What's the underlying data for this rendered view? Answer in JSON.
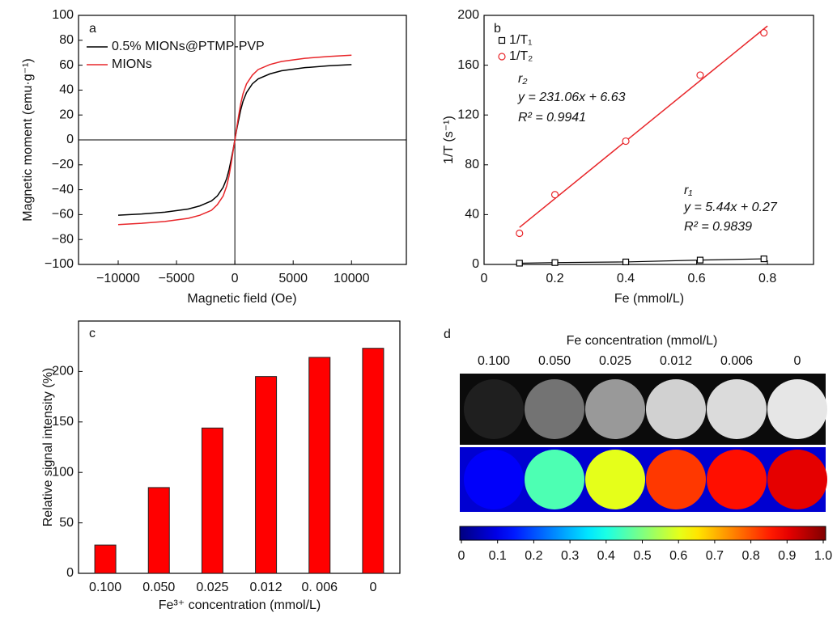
{
  "chart_data": [
    {
      "type": "line",
      "panel_label": "a",
      "x_label": "Magnetic field (Oe)",
      "y_label": "Magnetic moment (emu·g⁻¹)",
      "xlim": [
        -13400,
        14700
      ],
      "ylim": [
        -100,
        100
      ],
      "xticks": [
        {
          "value": -10000,
          "label": "−10000"
        },
        {
          "value": -5000,
          "label": "−5000"
        },
        0,
        5000,
        10000
      ],
      "yticks": [
        {
          "value": -100,
          "label": "−100"
        },
        {
          "value": -80,
          "label": "−80"
        },
        {
          "value": -60,
          "label": "−60"
        },
        {
          "value": -40,
          "label": "−40"
        },
        {
          "value": -20,
          "label": "−20"
        },
        0,
        20,
        40,
        60,
        80,
        100
      ],
      "zero_lines": true,
      "legend": "upper left",
      "x": [
        -10000,
        -8000,
        -6000,
        -4000,
        -3000,
        -2000,
        -1500,
        -1000,
        -700,
        -500,
        -300,
        -150,
        0,
        150,
        300,
        500,
        700,
        1000,
        1500,
        2000,
        3000,
        4000,
        6000,
        8000,
        10000
      ],
      "series": [
        {
          "name": "0.5% MIONs@PTMP-PVP",
          "color": "#000000",
          "values": [
            -60.5,
            -59.5,
            -58,
            -55.5,
            -53,
            -49,
            -45,
            -38,
            -31,
            -24,
            -15,
            -8,
            0,
            8,
            15,
            24,
            31,
            38,
            45,
            49,
            53,
            55.5,
            58,
            59.5,
            60.5
          ]
        },
        {
          "name": "MIONs",
          "color": "#e8262a",
          "values": [
            -68,
            -67,
            -65.5,
            -63,
            -60.5,
            -56.5,
            -52,
            -45,
            -37,
            -29,
            -18,
            -9,
            0,
            9,
            18,
            29,
            37,
            45,
            52,
            56.5,
            60.5,
            63,
            65.5,
            67,
            68
          ]
        }
      ]
    },
    {
      "type": "scatter",
      "panel_label": "b",
      "x_label": "Fe (mmol/L)",
      "y_label": "1/T (s⁻¹)",
      "xlim": [
        0,
        0.93
      ],
      "ylim": [
        0,
        200
      ],
      "xticks": [
        0,
        0.2,
        0.4,
        0.6,
        0.8
      ],
      "yticks": [
        0,
        40,
        80,
        120,
        160,
        200
      ],
      "legend": "upper left",
      "series": [
        {
          "name": "1/T₁",
          "color": "#000000",
          "marker": "square",
          "connect": true,
          "x": [
            0.1,
            0.2,
            0.4,
            0.61,
            0.79
          ],
          "values": [
            1,
            1.5,
            2,
            3.5,
            4.5
          ]
        },
        {
          "name": "1/T₂",
          "color": "#e8262a",
          "marker": "circle",
          "connect": false,
          "x": [
            0.1,
            0.2,
            0.4,
            0.61,
            0.79
          ],
          "values": [
            25,
            56,
            99,
            152,
            186
          ]
        }
      ],
      "fit_lines": [
        {
          "color": "#e8262a",
          "x": [
            0.1,
            0.8
          ],
          "values": [
            29.74,
            191.48
          ]
        }
      ],
      "annotations": [
        "r₂",
        "y = 231.06x + 6.63",
        "R² = 0.9941",
        "r₁",
        "y = 5.44x + 0.27",
        "R² = 0.9839"
      ]
    },
    {
      "type": "bar",
      "panel_label": "c",
      "x_label": "Fe³⁺ concentration (mmol/L)",
      "y_label": "Relative signal intensity (%)",
      "categories": [
        "0.100",
        "0.050",
        "0.025",
        "0.012",
        "0. 006",
        "0"
      ],
      "values": [
        28,
        85,
        144,
        195,
        214,
        223
      ],
      "color": "#ff0000",
      "ylim": [
        0,
        250
      ],
      "yticks": [
        0,
        50,
        100,
        150,
        200
      ]
    },
    {
      "type": "image",
      "panel_label": "d",
      "title": "Fe concentration (mmol/L)",
      "categories": [
        "0.100",
        "0.050",
        "0.025",
        "0.012",
        "0.006",
        "0"
      ],
      "values": [
        0.12,
        0.45,
        0.6,
        0.82,
        0.86,
        0.9
      ],
      "colormap": "jet",
      "clim": [
        0,
        1
      ],
      "colorbar_ticks": [
        0,
        0.1,
        0.2,
        0.3,
        0.4,
        0.5,
        0.6,
        0.7,
        0.8,
        0.9,
        {
          "value": 1,
          "label": "1.0"
        }
      ]
    }
  ]
}
